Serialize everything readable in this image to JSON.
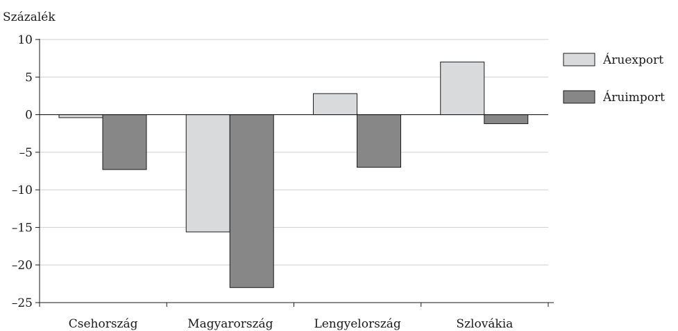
{
  "chart_data": {
    "type": "bar",
    "ylabel": "Százalék",
    "xlabel": "",
    "title": "",
    "categories": [
      "Csehország",
      "Magyarország",
      "Lengyelország",
      "Szlovákia"
    ],
    "ylim": [
      -25,
      10
    ],
    "yticks": [
      10,
      5,
      0,
      -5,
      -10,
      -15,
      -20,
      -25
    ],
    "ytick_labels": [
      "10",
      "5",
      "0",
      "–5",
      "–10",
      "–15",
      "–20",
      "–25"
    ],
    "grid": true,
    "legend_position": "right",
    "series": [
      {
        "name": "Áruexport",
        "values": [
          -0.4,
          -15.6,
          2.8,
          7.0
        ],
        "color": "#d9dadb"
      },
      {
        "name": "Áruimport",
        "values": [
          -7.3,
          -23.0,
          -7.0,
          -1.2
        ],
        "color": "#878787"
      }
    ]
  }
}
